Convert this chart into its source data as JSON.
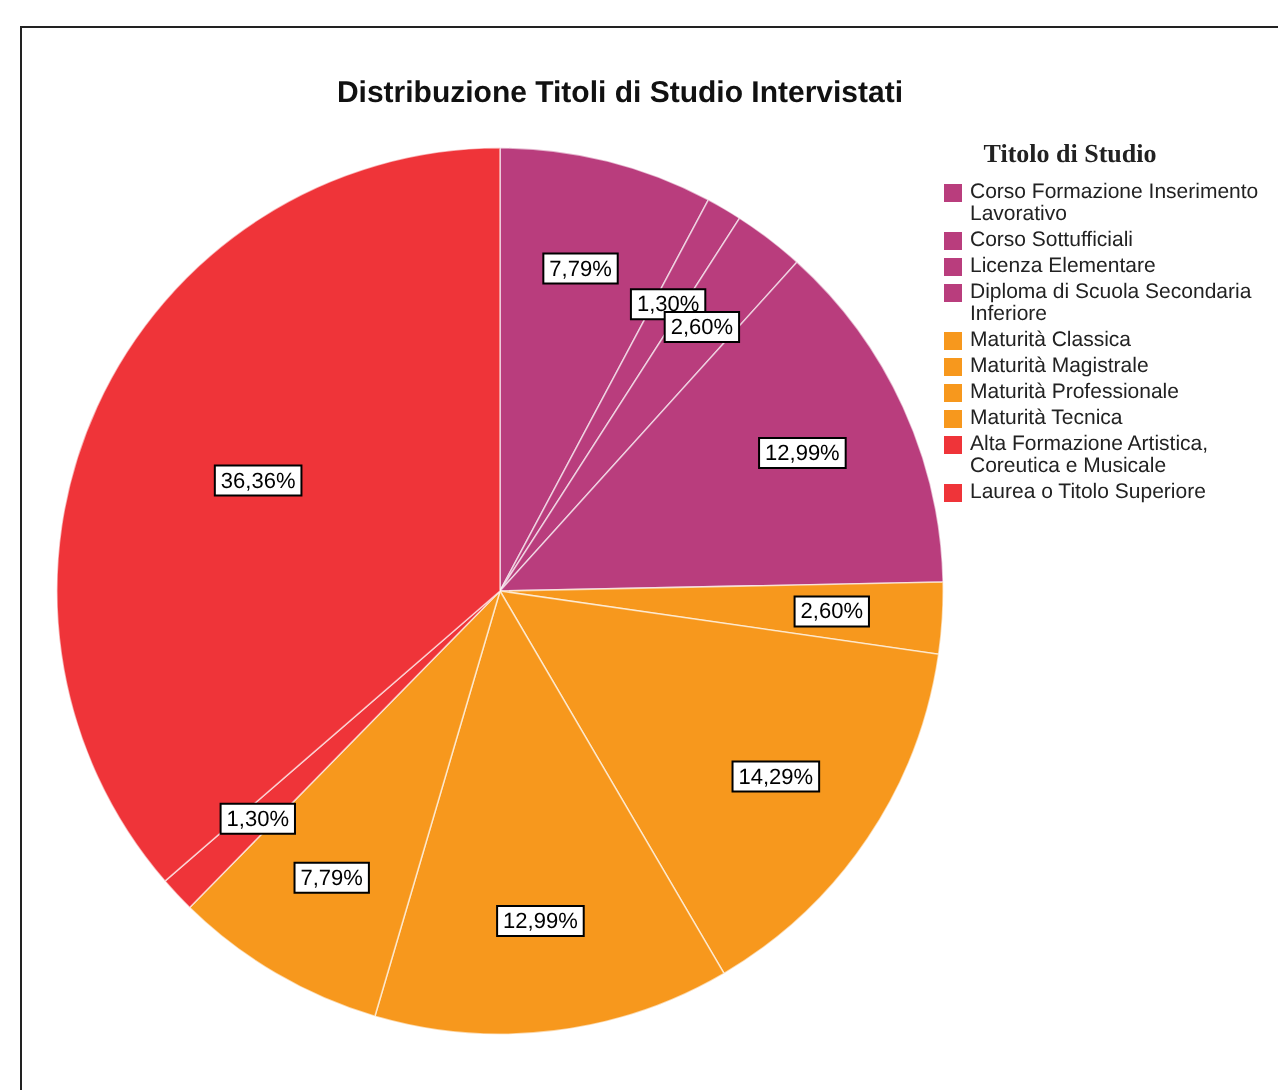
{
  "chart_data": {
    "type": "pie",
    "title": "Distribuzione Titoli di Studio Intervistati",
    "legend_title": "Titolo di Studio",
    "legend": "right",
    "categories": [
      "Corso Formazione Inserimento Lavorativo",
      "Corso Sottufficiali",
      "Licenza Elementare",
      "Diploma di Scuola Secondaria Inferiore",
      "Maturità Classica",
      "Maturità Magistrale",
      "Maturità Professionale",
      "Maturità Tecnica",
      "Alta Formazione Artistica, Coreutica e Musicale",
      "Laurea o Titolo Superiore"
    ],
    "values": [
      7.79,
      1.3,
      2.6,
      12.99,
      2.6,
      14.29,
      12.99,
      7.79,
      1.3,
      36.36
    ],
    "value_labels": [
      "7,79%",
      "1,30%",
      "2,60%",
      "12,99%",
      "2,60%",
      "14,29%",
      "12,99%",
      "7,79%",
      "1,30%",
      "36,36%"
    ],
    "colors": [
      "#b93d7d",
      "#b93d7d",
      "#b93d7d",
      "#b93d7d",
      "#f7981d",
      "#f7981d",
      "#f7981d",
      "#f7981d",
      "#ef3439",
      "#ef3439"
    ]
  }
}
